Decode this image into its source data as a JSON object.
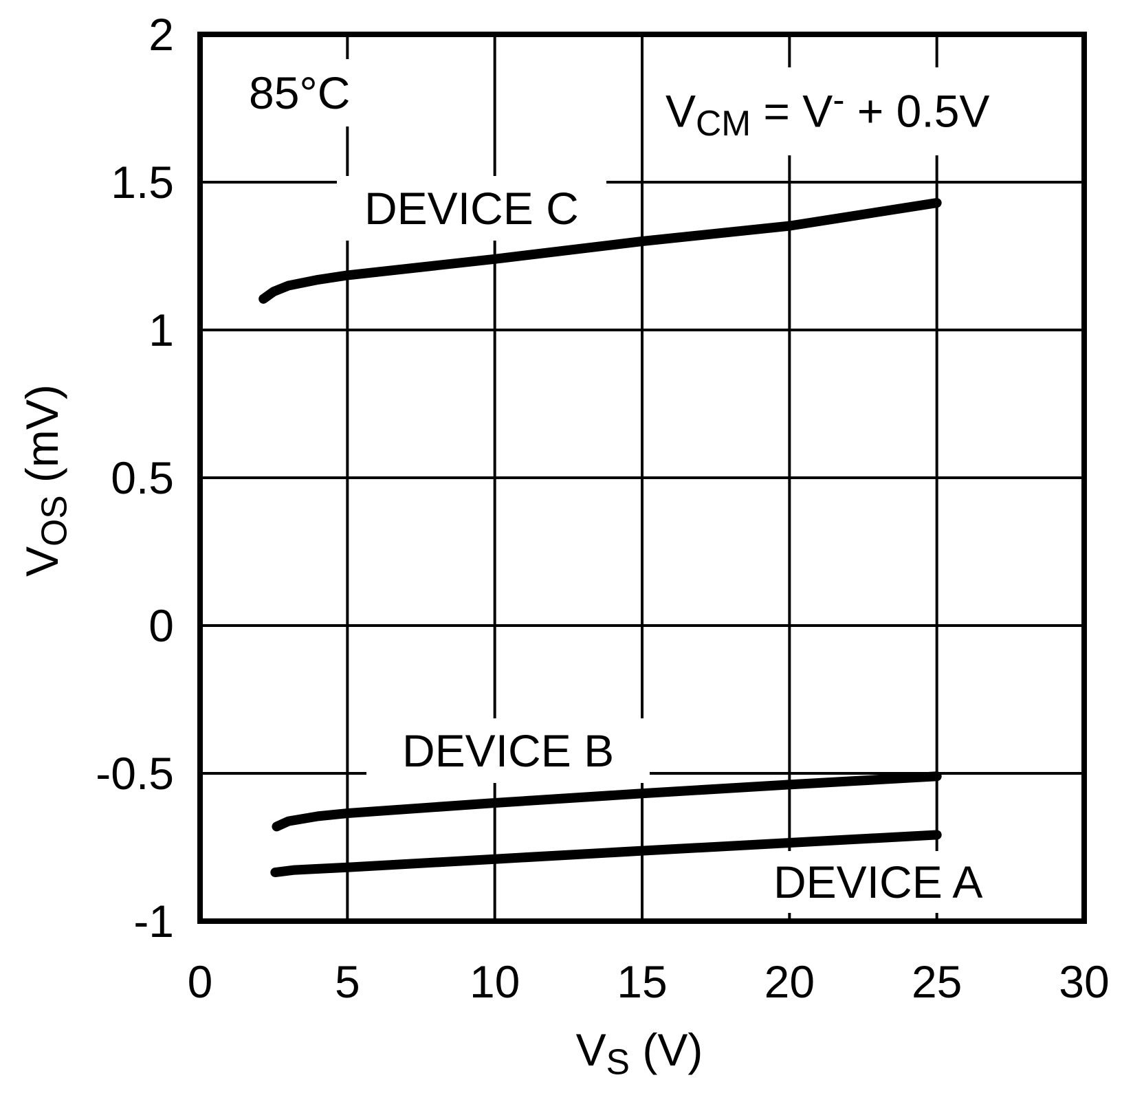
{
  "colors": {
    "background": "#ffffff",
    "foreground": "#000000"
  },
  "labels": {
    "temp": "85°C",
    "vcm": {
      "pre": "V",
      "sub": "CM",
      "mid": " = V",
      "sup": "-",
      "post": " + 0.5V"
    },
    "x_title": {
      "pre": "V",
      "sub": "S",
      "post": " (V)"
    },
    "y_title": {
      "pre": "V",
      "sub": "OS",
      "post": " (mV)"
    }
  },
  "chart_data": {
    "type": "line",
    "title": "",
    "xlabel": "V_S (V)",
    "ylabel": "V_OS (mV)",
    "xlim": [
      0,
      30
    ],
    "ylim": [
      -1,
      2
    ],
    "x_ticks": [
      0,
      5,
      10,
      15,
      20,
      25,
      30
    ],
    "y_ticks": [
      2,
      1.5,
      1,
      0.5,
      0,
      -0.5,
      -1
    ],
    "grid": true,
    "legend_position": "inline-labels",
    "annotations": [
      "85°C",
      "VCM = V- + 0.5V"
    ],
    "series": [
      {
        "name": "DEVICE C",
        "points": [
          [
            2.15,
            1.105
          ],
          [
            2.5,
            1.13
          ],
          [
            3,
            1.15
          ],
          [
            4,
            1.17
          ],
          [
            5,
            1.185
          ],
          [
            10,
            1.24
          ],
          [
            15,
            1.3
          ],
          [
            20,
            1.352
          ],
          [
            25,
            1.43
          ]
        ]
      },
      {
        "name": "DEVICE B",
        "points": [
          [
            2.6,
            -0.68
          ],
          [
            3,
            -0.662
          ],
          [
            4,
            -0.645
          ],
          [
            5,
            -0.635
          ],
          [
            10,
            -0.6
          ],
          [
            15,
            -0.568
          ],
          [
            20,
            -0.538
          ],
          [
            25,
            -0.51
          ]
        ]
      },
      {
        "name": "DEVICE A",
        "points": [
          [
            2.55,
            -0.835
          ],
          [
            3.2,
            -0.827
          ],
          [
            4,
            -0.823
          ],
          [
            5,
            -0.818
          ],
          [
            10,
            -0.79
          ],
          [
            15,
            -0.762
          ],
          [
            20,
            -0.735
          ],
          [
            25,
            -0.708
          ]
        ]
      }
    ]
  }
}
